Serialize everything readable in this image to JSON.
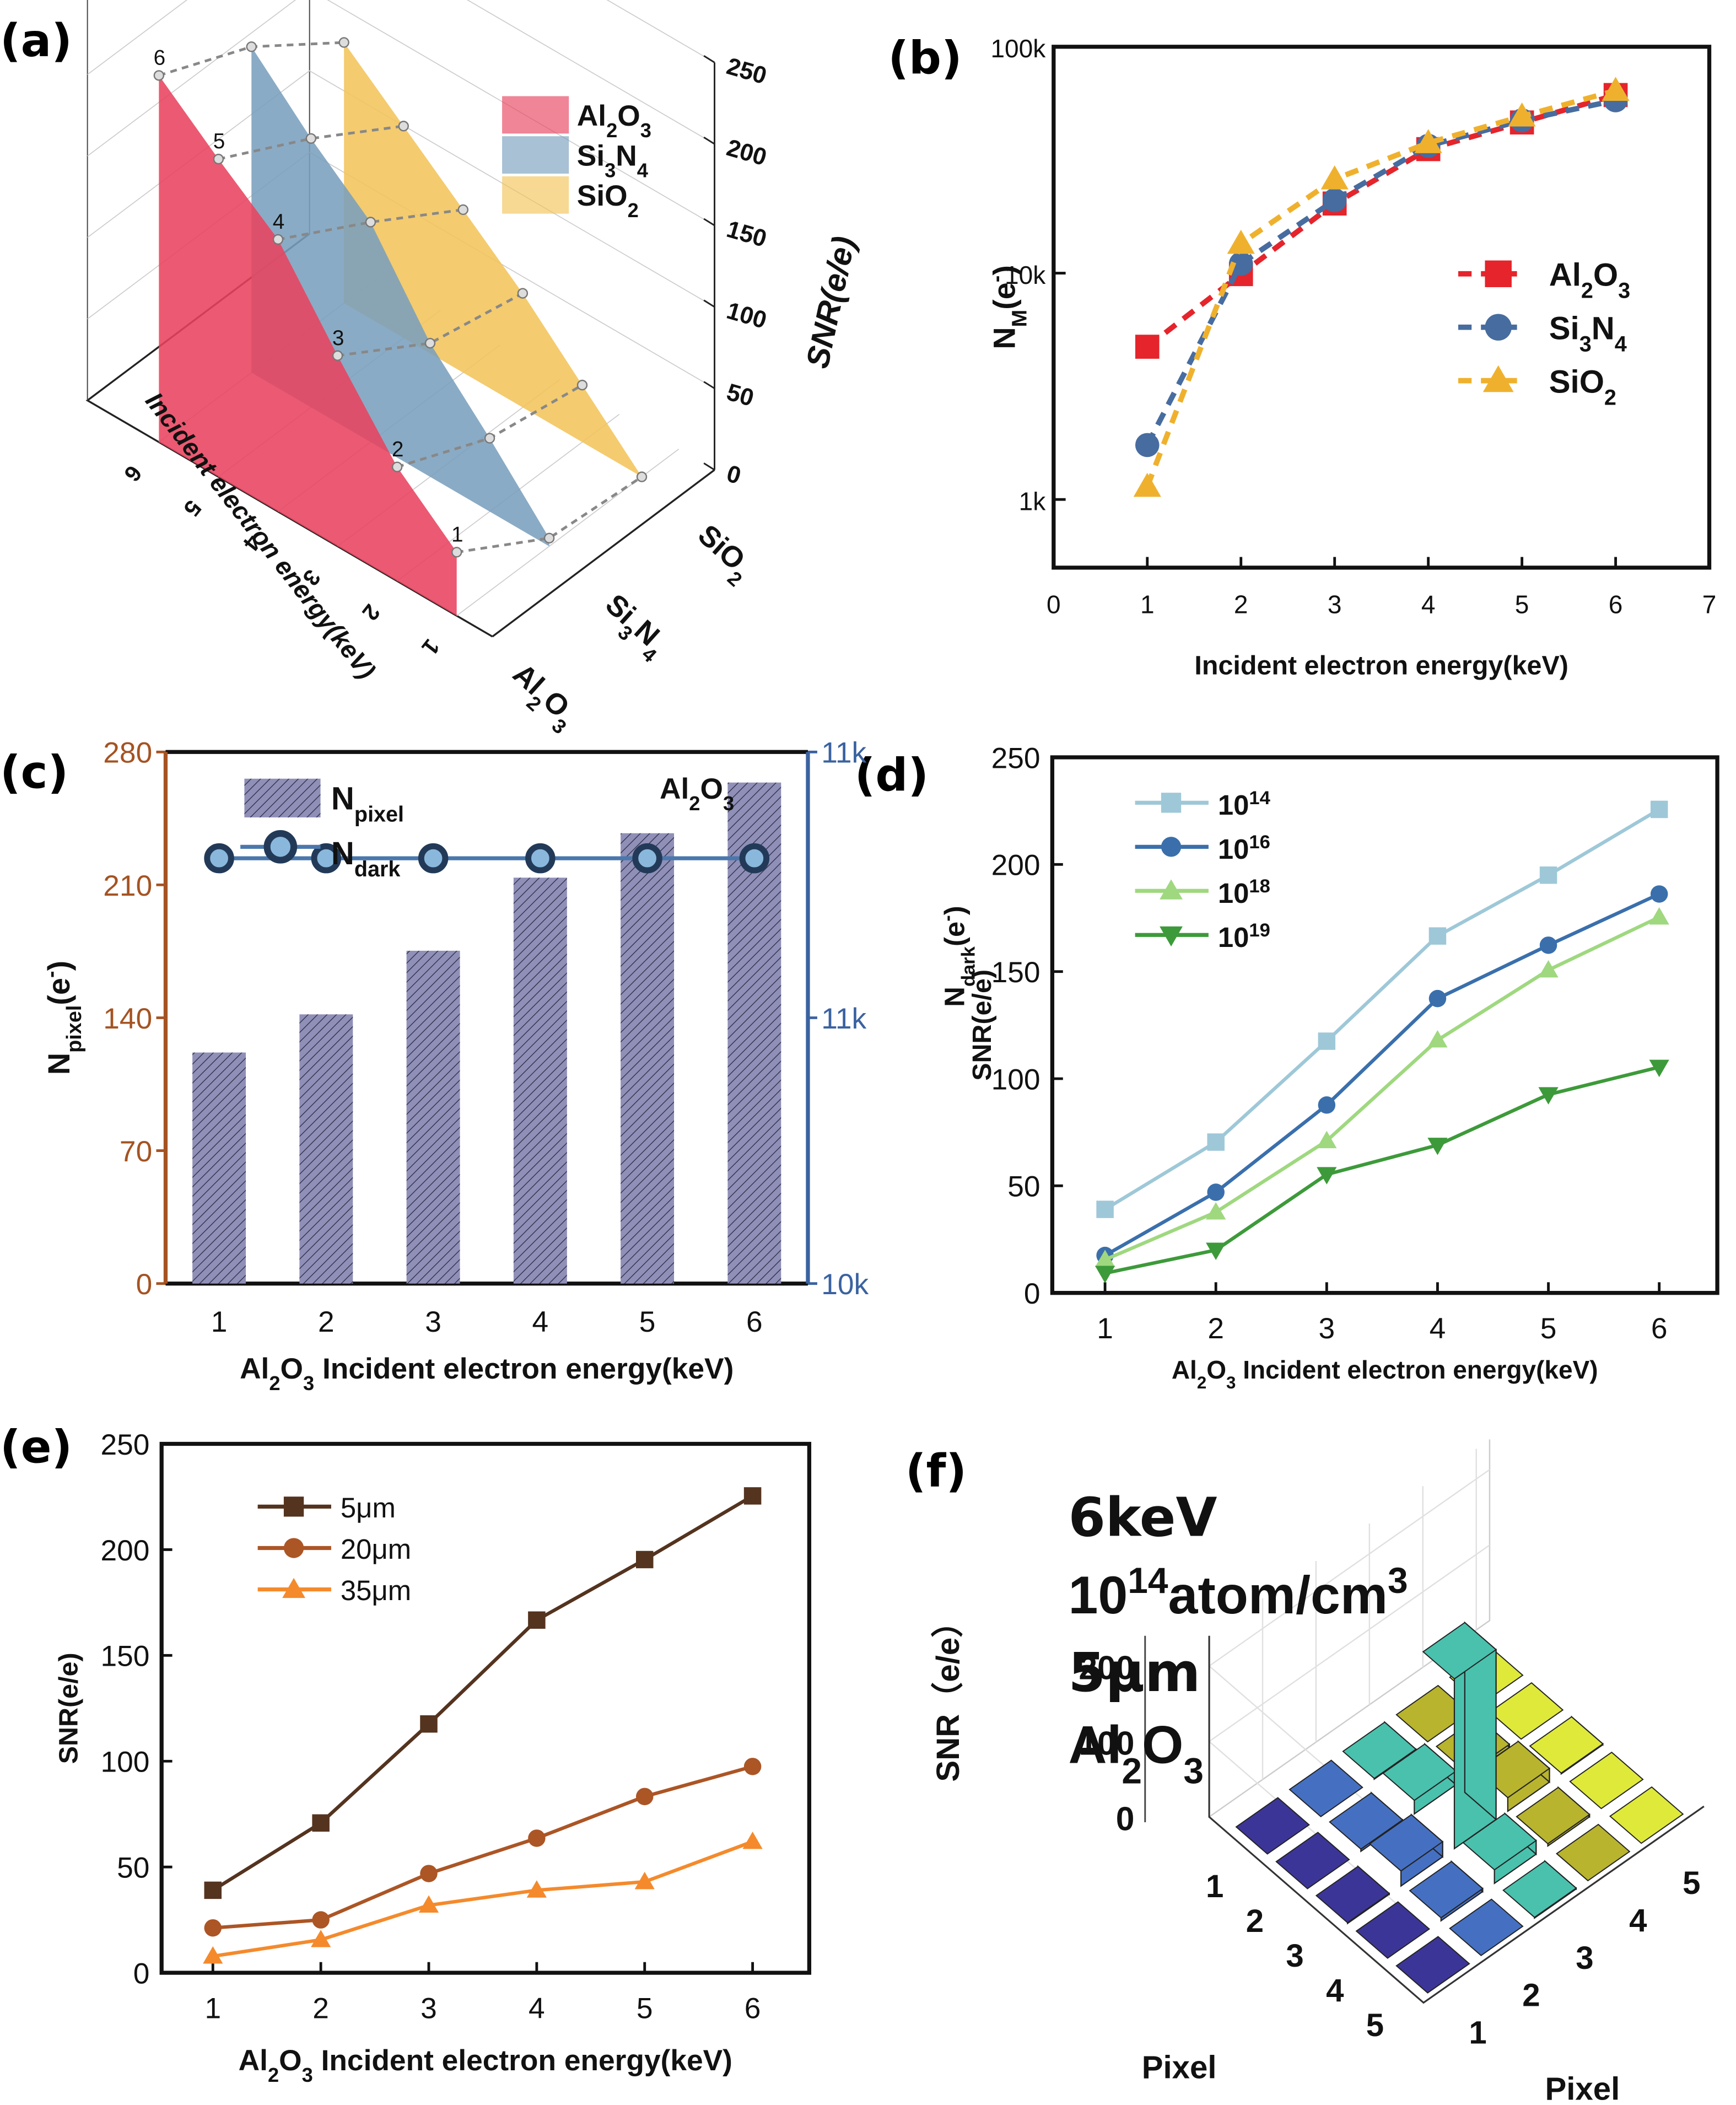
{
  "figure": {
    "panels": [
      "(a)",
      "(b)",
      "(c)",
      "(d)",
      "(e)",
      "(f)"
    ]
  },
  "colors": {
    "al2o3_red": "#e5242b",
    "si3n4_blue": "#476c9f",
    "sio2_yellow": "#efb12d",
    "surf_red": "#e8435f",
    "surf_blue": "#7a9fbd",
    "surf_yellow": "#f2c45a",
    "bar_fill": "#8f8fb8",
    "left_axis_brown": "#a55322",
    "right_axis_blue": "#3b62a0",
    "ndark_marker_fill": "#8ab8dc",
    "ndark_marker_edge": "#223a58",
    "d_1e14": "#9ec8d8",
    "d_1e16": "#3a6fac",
    "d_1e18": "#9fd87f",
    "d_1e19": "#3d9a3a",
    "e_5um": "#54331f",
    "e_20um": "#ac5525",
    "e_35um": "#f48a2c",
    "f_col1": "#3c3598",
    "f_col2": "#4570c2",
    "f_col3": "#49c1ad",
    "f_col4": "#b8b42e",
    "f_col5": "#dfe93a"
  },
  "chart_data": [
    {
      "id": "a",
      "type": "area",
      "title": "",
      "xlabel": "Incident electron energy(keV)",
      "ylabel": "",
      "zlabel": "SNR(e/e)",
      "materials": [
        "Al2O3",
        "Si3N4",
        "SiO2"
      ],
      "material_labels": [
        {
          "base": "Al",
          "sub1": "2",
          "mid": "O",
          "sub2": "3"
        },
        {
          "base": "Si",
          "sub1": "3",
          "mid": "N",
          "sub2": "4"
        },
        {
          "base": "SiO",
          "sub1": "2",
          "mid": "",
          "sub2": ""
        }
      ],
      "x": [
        1,
        2,
        3,
        4,
        5,
        6
      ],
      "x_ticks": [
        "1",
        "2",
        "3",
        "4",
        "5",
        "6"
      ],
      "z_ticks": [
        "0",
        "50",
        "100",
        "150",
        "200",
        "250"
      ],
      "zlim": [
        0,
        250
      ],
      "point_labels": [
        "1",
        "2",
        "3",
        "4",
        "5",
        "6"
      ],
      "series": [
        {
          "name": "Al2O3",
          "values": [
            39,
            70,
            117,
            167,
            195,
            225
          ]
        },
        {
          "name": "Si3N4",
          "values": [
            5,
            45,
            82,
            135,
            165,
            200
          ]
        },
        {
          "name": "SiO2",
          "values": [
            0,
            35,
            70,
            100,
            130,
            160
          ]
        }
      ],
      "legend": "top-right"
    },
    {
      "id": "b",
      "type": "line",
      "title": "",
      "xlabel": "Incident electron energy(keV)",
      "ylabel": "N_M(e-)",
      "ylabel_main": "N",
      "ylabel_sub": "M",
      "ylabel_rest": "(e",
      "ylabel_sup": "-",
      "ylabel_end": ")",
      "yscale": "log",
      "xlim": [
        0,
        7
      ],
      "ylim": [
        500,
        100000
      ],
      "x_ticks": [
        "0",
        "1",
        "2",
        "3",
        "4",
        "5",
        "6",
        "7"
      ],
      "y_ticks": [
        {
          "v": 1000,
          "label": "1k"
        },
        {
          "v": 10000,
          "label": "10k"
        },
        {
          "v": 100000,
          "label": "100k"
        }
      ],
      "x": [
        1,
        2,
        3,
        4,
        5,
        6
      ],
      "series": [
        {
          "name": "Al2O3",
          "marker": "square",
          "values": [
            4730,
            9900,
            20300,
            35300,
            46300,
            61200
          ]
        },
        {
          "name": "Si3N4",
          "marker": "circle",
          "values": [
            1740,
            11000,
            21000,
            36500,
            47300,
            58000
          ]
        },
        {
          "name": "SiO2",
          "marker": "triangle",
          "values": [
            1140,
            13500,
            26000,
            37600,
            49300,
            64000
          ]
        }
      ],
      "legend": "center-right"
    },
    {
      "id": "c",
      "type": "bar",
      "title": "Al2O3",
      "xlabel": "Al2O3 Incident electron energy(keV)",
      "ylabel": "N_pixel(e-)",
      "ylabel_right": "N_dark(e-)",
      "categories": [
        "1",
        "2",
        "3",
        "4",
        "5",
        "6"
      ],
      "ylim": [
        0,
        280
      ],
      "y_ticks": [
        "0",
        "70",
        "140",
        "210",
        "280"
      ],
      "y2lim": [
        10000,
        11000
      ],
      "y2_ticks": [
        "10k",
        "11k",
        "11k"
      ],
      "series": [
        {
          "name": "N_pixel",
          "type": "bar",
          "axis": "left",
          "values": [
            121.7,
            141.8,
            175.3,
            213.8,
            237.2,
            263.9
          ]
        },
        {
          "name": "N_dark",
          "type": "line",
          "axis": "right",
          "values": [
            10800,
            10800,
            10800,
            10800,
            10800,
            10800
          ]
        }
      ],
      "legend": "top-left"
    },
    {
      "id": "d",
      "type": "line",
      "title": "",
      "xlabel": "Al2O3 Incident electron energy(keV)",
      "ylabel": "SNR(e/e)",
      "ylim": [
        0,
        250
      ],
      "y_ticks": [
        "0",
        "50",
        "100",
        "150",
        "200",
        "250"
      ],
      "x": [
        1,
        2,
        3,
        4,
        5,
        6
      ],
      "x_ticks": [
        "1",
        "2",
        "3",
        "4",
        "5",
        "6"
      ],
      "series": [
        {
          "name": "10^14",
          "exp": "14",
          "marker": "square",
          "values": [
            39,
            70.4,
            117.5,
            166.6,
            195,
            225.7
          ]
        },
        {
          "name": "10^16",
          "exp": "16",
          "marker": "circle",
          "values": [
            17.5,
            47,
            87.7,
            137.4,
            162.3,
            186.2
          ]
        },
        {
          "name": "10^18",
          "exp": "18",
          "marker": "triangle",
          "values": [
            15.5,
            37.7,
            71,
            118,
            150.7,
            175.4
          ]
        },
        {
          "name": "10^19",
          "exp": "19",
          "marker": "triangle-down",
          "values": [
            9.2,
            20,
            55.3,
            69,
            92.6,
            105.4
          ]
        }
      ],
      "legend": "top-left"
    },
    {
      "id": "e",
      "type": "line",
      "title": "",
      "xlabel": "Al2O3 Incident electron energy(keV)",
      "ylabel": "SNR(e/e)",
      "ylim": [
        0,
        250
      ],
      "y_ticks": [
        "0",
        "50",
        "100",
        "150",
        "200",
        "250"
      ],
      "x": [
        1,
        2,
        3,
        4,
        5,
        6
      ],
      "x_ticks": [
        "1",
        "2",
        "3",
        "4",
        "5",
        "6"
      ],
      "series": [
        {
          "name": "5μm",
          "marker": "square",
          "values": [
            39,
            70.8,
            117.6,
            166.7,
            195.3,
            225.4
          ]
        },
        {
          "name": "20μm",
          "marker": "circle",
          "values": [
            21.2,
            25,
            46.9,
            63.6,
            83.3,
            97.5
          ]
        },
        {
          "name": "35μm",
          "marker": "triangle",
          "values": [
            7.8,
            15.6,
            31.9,
            39,
            43,
            62
          ]
        }
      ],
      "legend": "top-left"
    },
    {
      "id": "f",
      "type": "bar3d",
      "title": "",
      "annotations": [
        "6keV",
        "10^14atom/cm^3",
        "5μm",
        "Al2O3"
      ],
      "ylabel": "SNR（e/e）",
      "xlabel": "Pixel",
      "ylabel2": "Pixel",
      "z_ticks": [
        "0",
        "100",
        "200"
      ],
      "zlim": [
        0,
        240
      ],
      "row_ticks": [
        "1",
        "2",
        "3",
        "4",
        "5"
      ],
      "col_ticks": [
        "1",
        "2",
        "3",
        "4",
        "5"
      ],
      "grid": [
        [
          0,
          0,
          1,
          0,
          0
        ],
        [
          0,
          3,
          18,
          4,
          0
        ],
        [
          1,
          20,
          225,
          18,
          1
        ],
        [
          0,
          4,
          18,
          3,
          0
        ],
        [
          0,
          0,
          1,
          0,
          0
        ]
      ]
    }
  ],
  "text": {
    "f_line1": "6keV",
    "f_line2_base": "10",
    "f_line2_sup": "14",
    "f_line2_rest": "atom/cm",
    "f_line2_sup2": "3",
    "f_line3": "5μm",
    "f_line4_a": "Al",
    "f_line4_s1": "2",
    "f_line4_b": "O",
    "f_line4_s2": "3",
    "c_npixel_main": "N",
    "c_npixel_sub": "pixel",
    "c_ndark_main": "N",
    "c_ndark_sub": "dark",
    "c_ylabel_rest": "(e",
    "c_ylabel_sup": "-",
    "c_ylabel_end": ")",
    "d_snr_label": "SNR(e/e)",
    "d_ylabel_left_main": "N",
    "d_ylabel_left_sub": "dark",
    "e_xlabel_pre": "Al",
    "e_xlabel_s1": "2",
    "e_xlabel_mid": "O",
    "e_xlabel_s2": "3",
    "e_xlabel_rest": " Incident electron energy(keV)"
  }
}
